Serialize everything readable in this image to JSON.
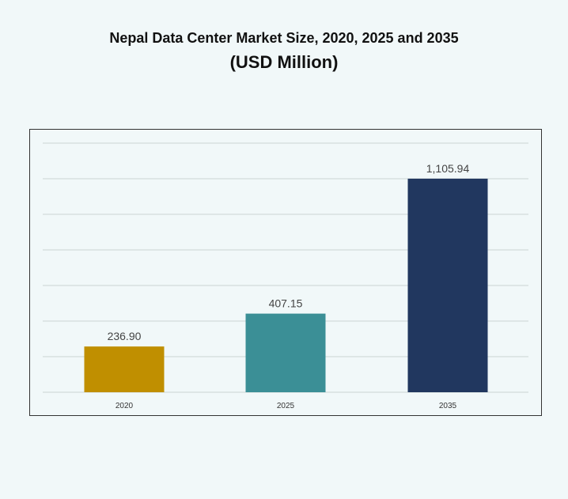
{
  "chart_data": {
    "type": "bar",
    "title": "Nepal Data Center Market Size, 2020, 2025 and 2035",
    "subtitle": "(USD Million)",
    "categories": [
      "2020",
      "2025",
      "2035"
    ],
    "values": [
      236.9,
      407.15,
      1105.94
    ],
    "value_labels": [
      "236.90",
      "407.15",
      "1,105.94"
    ],
    "colors": [
      "#c08f00",
      "#3b8f96",
      "#21375f"
    ],
    "xlabel": "",
    "ylabel": "",
    "ylim": [
      0,
      1290
    ],
    "grid": true,
    "legend": "none"
  }
}
